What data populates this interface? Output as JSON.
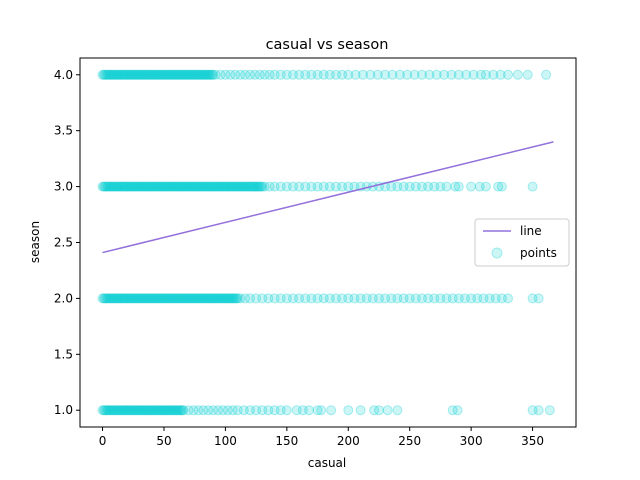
{
  "chart_data": {
    "type": "scatter",
    "title": "casual vs season",
    "xlabel": "casual",
    "ylabel": "season",
    "xlim": [
      -18.35,
      385.35
    ],
    "ylim": [
      0.85,
      4.15
    ],
    "xticks": [
      0,
      50,
      100,
      150,
      200,
      250,
      300,
      350
    ],
    "yticks": [
      1.0,
      1.5,
      2.0,
      2.5,
      3.0,
      3.5,
      4.0
    ],
    "xtick_labels": [
      "0",
      "50",
      "100",
      "150",
      "200",
      "250",
      "300",
      "350"
    ],
    "ytick_labels": [
      "1.0",
      "1.5",
      "2.0",
      "2.5",
      "3.0",
      "3.5",
      "4.0"
    ],
    "grid": false,
    "legend_position": "center-right",
    "series": [
      {
        "name": "line",
        "kind": "line",
        "color": "#9370db",
        "x": [
          0,
          367
        ],
        "y": [
          2.41,
          3.4
        ]
      },
      {
        "name": "points",
        "kind": "scatter",
        "color": "#00ced1",
        "opacity": 0.2,
        "groups": [
          {
            "y": 4.0,
            "dense_max": 90,
            "x": [
              92,
              96,
              100,
              104,
              108,
              112,
              116,
              120,
              124,
              128,
              132,
              136,
              140,
              145,
              150,
              155,
              160,
              165,
              170,
              175,
              180,
              185,
              190,
              195,
              200,
              206,
              212,
              218,
              224,
              230,
              236,
              242,
              248,
              254,
              260,
              266,
              272,
              278,
              284,
              290,
              296,
              302,
              308,
              312,
              318,
              324,
              330,
              338,
              346,
              361
            ]
          },
          {
            "y": 3.0,
            "dense_max": 130,
            "x": [
              132,
              136,
              140,
              145,
              150,
              155,
              160,
              165,
              170,
              175,
              180,
              185,
              190,
              195,
              200,
              205,
              210,
              215,
              220,
              225,
              230,
              235,
              240,
              245,
              250,
              255,
              260,
              265,
              270,
              275,
              280,
              287,
              290,
              300,
              307,
              312,
              322,
              325,
              350
            ]
          },
          {
            "y": 2.0,
            "dense_max": 110,
            "x": [
              112,
              116,
              120,
              125,
              130,
              135,
              140,
              145,
              150,
              155,
              160,
              165,
              170,
              175,
              180,
              185,
              190,
              195,
              200,
              205,
              210,
              215,
              220,
              225,
              230,
              235,
              240,
              245,
              250,
              255,
              260,
              265,
              270,
              275,
              280,
              285,
              290,
              295,
              300,
              305,
              310,
              315,
              320,
              325,
              330,
              350,
              355
            ]
          },
          {
            "y": 1.0,
            "dense_max": 65,
            "x": [
              66,
              70,
              74,
              78,
              82,
              86,
              90,
              94,
              98,
              102,
              106,
              110,
              115,
              120,
              125,
              130,
              135,
              140,
              145,
              150,
              158,
              163,
              168,
              175,
              178,
              186,
              200,
              210,
              221,
              225,
              232,
              240,
              285,
              289,
              350,
              355,
              364
            ]
          }
        ]
      }
    ]
  }
}
